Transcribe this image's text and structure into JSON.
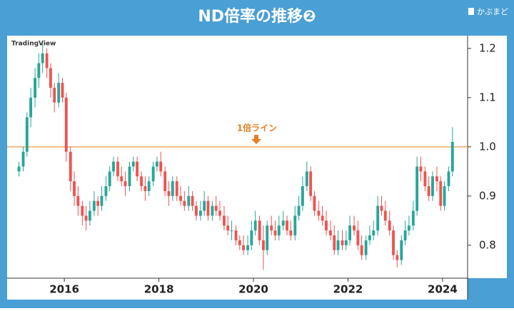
{
  "chart_data": {
    "type": "candlestick",
    "title": "ND倍率の推移❷",
    "brand": "かぶまど",
    "source": "TradingView",
    "annotation": "1倍ライン",
    "hline": {
      "value": 1,
      "color": "#f0a868"
    },
    "up_color": "#26a69a",
    "down_color": "#ef5350",
    "xlim": [
      2014.79,
      2024.53
    ],
    "xticks": [
      2016,
      2018,
      2020,
      2022,
      2024
    ],
    "ylim": [
      0.733,
      1.226
    ],
    "yticks": [
      1.2,
      1.1,
      {
        "value": 1.0,
        "label": "1.0"
      },
      0.9,
      0.8
    ],
    "x": [
      2015.04,
      2015.13,
      2015.21,
      2015.29,
      2015.38,
      2015.46,
      2015.54,
      2015.63,
      2015.71,
      2015.79,
      2015.88,
      2015.96,
      2016.04,
      2016.13,
      2016.21,
      2016.29,
      2016.38,
      2016.46,
      2016.54,
      2016.63,
      2016.71,
      2016.79,
      2016.88,
      2016.96,
      2017.04,
      2017.13,
      2017.21,
      2017.29,
      2017.38,
      2017.46,
      2017.54,
      2017.63,
      2017.71,
      2017.79,
      2017.88,
      2017.96,
      2018.04,
      2018.13,
      2018.21,
      2018.29,
      2018.38,
      2018.46,
      2018.54,
      2018.63,
      2018.71,
      2018.79,
      2018.88,
      2018.96,
      2019.04,
      2019.13,
      2019.21,
      2019.29,
      2019.38,
      2019.46,
      2019.54,
      2019.63,
      2019.71,
      2019.79,
      2019.88,
      2019.96,
      2020.04,
      2020.13,
      2020.21,
      2020.29,
      2020.38,
      2020.46,
      2020.54,
      2020.63,
      2020.71,
      2020.79,
      2020.88,
      2020.96,
      2021.04,
      2021.13,
      2021.21,
      2021.29,
      2021.38,
      2021.46,
      2021.54,
      2021.63,
      2021.71,
      2021.79,
      2021.88,
      2021.96,
      2022.04,
      2022.13,
      2022.21,
      2022.29,
      2022.38,
      2022.46,
      2022.54,
      2022.63,
      2022.71,
      2022.79,
      2022.88,
      2022.96,
      2023.04,
      2023.13,
      2023.21,
      2023.29,
      2023.38,
      2023.46,
      2023.54,
      2023.63,
      2023.71,
      2023.79,
      2023.88,
      2023.96,
      2024.04,
      2024.13,
      2024.21
    ],
    "open": [
      0.95,
      0.96,
      0.99,
      1.06,
      1.1,
      1.14,
      1.17,
      1.19,
      1.16,
      1.12,
      1.09,
      1.13,
      1.1,
      0.99,
      0.93,
      0.9,
      0.88,
      0.86,
      0.85,
      0.87,
      0.89,
      0.88,
      0.9,
      0.92,
      0.95,
      0.97,
      0.94,
      0.93,
      0.92,
      0.96,
      0.97,
      0.94,
      0.92,
      0.91,
      0.93,
      0.96,
      0.97,
      0.95,
      0.91,
      0.9,
      0.93,
      0.9,
      0.89,
      0.88,
      0.9,
      0.88,
      0.86,
      0.87,
      0.89,
      0.86,
      0.88,
      0.87,
      0.86,
      0.84,
      0.83,
      0.83,
      0.81,
      0.8,
      0.79,
      0.8,
      0.83,
      0.85,
      0.81,
      0.79,
      0.84,
      0.83,
      0.82,
      0.84,
      0.85,
      0.83,
      0.82,
      0.86,
      0.88,
      0.92,
      0.95,
      0.9,
      0.87,
      0.86,
      0.85,
      0.83,
      0.82,
      0.79,
      0.81,
      0.8,
      0.81,
      0.84,
      0.83,
      0.8,
      0.78,
      0.81,
      0.82,
      0.83,
      0.88,
      0.87,
      0.85,
      0.83,
      0.78,
      0.77,
      0.81,
      0.83,
      0.84,
      0.87,
      0.96,
      0.95,
      0.92,
      0.9,
      0.94,
      0.93,
      0.88,
      0.92,
      0.95
    ],
    "high": [
      0.97,
      1.0,
      1.07,
      1.12,
      1.16,
      1.19,
      1.21,
      1.2,
      1.17,
      1.13,
      1.15,
      1.14,
      1.11,
      1.0,
      0.95,
      0.92,
      0.89,
      0.88,
      0.89,
      0.91,
      0.9,
      0.92,
      0.94,
      0.96,
      0.98,
      0.98,
      0.96,
      0.95,
      0.97,
      0.98,
      0.98,
      0.95,
      0.94,
      0.94,
      0.97,
      0.98,
      0.99,
      0.96,
      0.93,
      0.94,
      0.94,
      0.92,
      0.91,
      0.92,
      0.91,
      0.89,
      0.89,
      0.91,
      0.9,
      0.89,
      0.9,
      0.89,
      0.88,
      0.86,
      0.85,
      0.84,
      0.82,
      0.82,
      0.82,
      0.85,
      0.87,
      0.86,
      0.84,
      0.85,
      0.86,
      0.85,
      0.86,
      0.87,
      0.86,
      0.85,
      0.88,
      0.9,
      0.94,
      0.97,
      0.96,
      0.91,
      0.89,
      0.88,
      0.87,
      0.85,
      0.84,
      0.83,
      0.83,
      0.83,
      0.86,
      0.86,
      0.85,
      0.82,
      0.82,
      0.84,
      0.85,
      0.9,
      0.9,
      0.89,
      0.87,
      0.84,
      0.79,
      0.82,
      0.85,
      0.86,
      0.89,
      0.98,
      0.98,
      0.96,
      0.94,
      0.95,
      0.96,
      0.94,
      0.93,
      0.96,
      1.04
    ],
    "low": [
      0.94,
      0.95,
      0.98,
      1.04,
      1.08,
      1.12,
      1.15,
      1.14,
      1.1,
      1.07,
      1.08,
      1.09,
      0.97,
      0.91,
      0.88,
      0.86,
      0.84,
      0.83,
      0.84,
      0.86,
      0.86,
      0.87,
      0.89,
      0.91,
      0.94,
      0.93,
      0.92,
      0.9,
      0.91,
      0.95,
      0.93,
      0.91,
      0.89,
      0.9,
      0.92,
      0.95,
      0.94,
      0.9,
      0.88,
      0.89,
      0.89,
      0.88,
      0.87,
      0.87,
      0.87,
      0.85,
      0.85,
      0.86,
      0.85,
      0.85,
      0.86,
      0.85,
      0.83,
      0.82,
      0.81,
      0.8,
      0.79,
      0.78,
      0.78,
      0.79,
      0.82,
      0.8,
      0.75,
      0.78,
      0.82,
      0.81,
      0.81,
      0.83,
      0.82,
      0.81,
      0.81,
      0.85,
      0.87,
      0.91,
      0.89,
      0.86,
      0.85,
      0.84,
      0.82,
      0.81,
      0.78,
      0.78,
      0.79,
      0.79,
      0.8,
      0.82,
      0.79,
      0.77,
      0.77,
      0.8,
      0.81,
      0.82,
      0.86,
      0.84,
      0.82,
      0.77,
      0.755,
      0.76,
      0.8,
      0.82,
      0.83,
      0.86,
      0.93,
      0.91,
      0.89,
      0.89,
      0.91,
      0.87,
      0.87,
      0.91,
      0.94
    ],
    "close": [
      0.96,
      0.99,
      1.06,
      1.1,
      1.14,
      1.17,
      1.19,
      1.16,
      1.12,
      1.09,
      1.13,
      1.1,
      0.99,
      0.93,
      0.9,
      0.88,
      0.86,
      0.85,
      0.87,
      0.89,
      0.88,
      0.9,
      0.92,
      0.95,
      0.97,
      0.94,
      0.93,
      0.92,
      0.96,
      0.97,
      0.94,
      0.92,
      0.91,
      0.93,
      0.96,
      0.97,
      0.95,
      0.91,
      0.9,
      0.93,
      0.9,
      0.89,
      0.88,
      0.9,
      0.88,
      0.86,
      0.87,
      0.89,
      0.86,
      0.88,
      0.87,
      0.86,
      0.84,
      0.83,
      0.83,
      0.81,
      0.8,
      0.79,
      0.8,
      0.83,
      0.85,
      0.81,
      0.79,
      0.84,
      0.83,
      0.82,
      0.84,
      0.85,
      0.83,
      0.82,
      0.86,
      0.88,
      0.92,
      0.95,
      0.9,
      0.87,
      0.86,
      0.85,
      0.83,
      0.82,
      0.79,
      0.81,
      0.8,
      0.81,
      0.84,
      0.83,
      0.8,
      0.78,
      0.81,
      0.82,
      0.83,
      0.88,
      0.87,
      0.85,
      0.83,
      0.78,
      0.77,
      0.81,
      0.83,
      0.84,
      0.87,
      0.96,
      0.95,
      0.92,
      0.9,
      0.94,
      0.93,
      0.88,
      0.92,
      0.95,
      1.01
    ]
  }
}
